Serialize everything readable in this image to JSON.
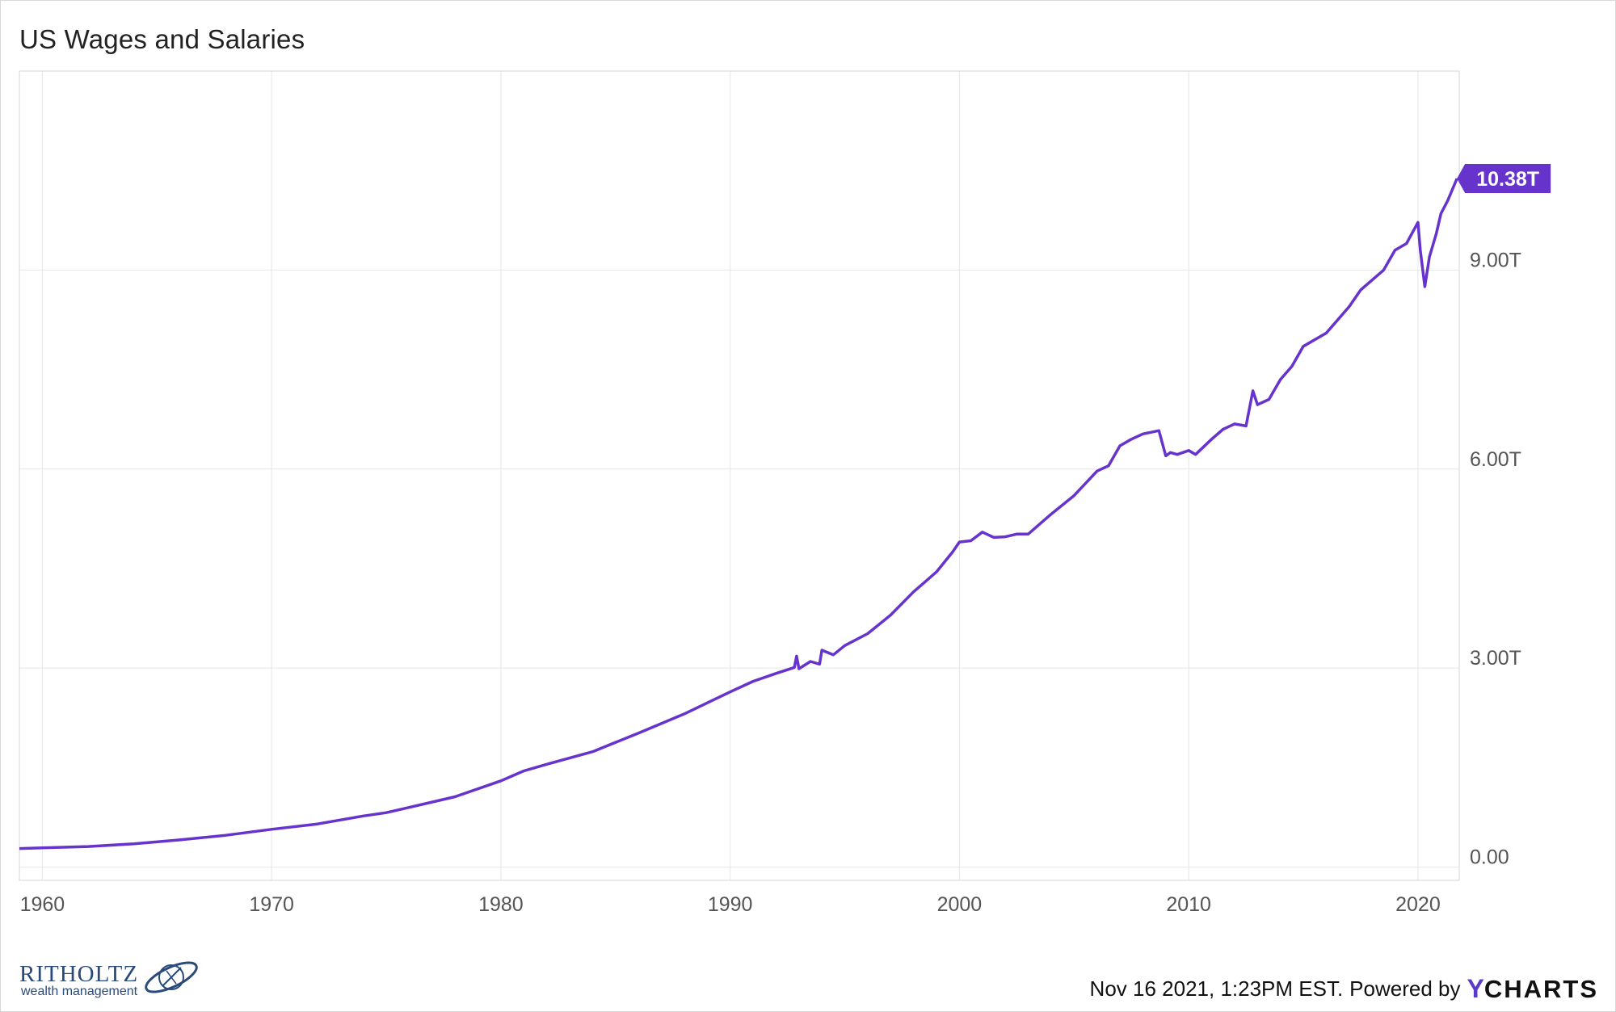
{
  "header": {
    "title": "US Wages and Salaries"
  },
  "footer": {
    "timestamp": "Nov 16 2021, 1:23PM EST.",
    "powered_by": "Powered by",
    "brand_y": "Y",
    "brand_rest": "CHARTS"
  },
  "logo": {
    "name": "RITHOLTZ",
    "sub": "wealth management"
  },
  "colors": {
    "line": "#6633cc",
    "grid": "#e6e6e6",
    "axis_text": "#555555",
    "badge": "#6633cc"
  },
  "chart_data": {
    "type": "line",
    "title": "US Wages and Salaries",
    "xlabel": "",
    "ylabel": "",
    "xlim": [
      1959.0,
      2021.8
    ],
    "ylim": [
      -0.2,
      12.0
    ],
    "x_ticks": [
      1960,
      1970,
      1980,
      1990,
      2000,
      2010,
      2020
    ],
    "x_tick_labels": [
      "1960",
      "1970",
      "1980",
      "1990",
      "2000",
      "2010",
      "2020"
    ],
    "y_ticks": [
      0,
      3,
      6,
      9
    ],
    "y_tick_labels": [
      "0.00",
      "3.00T",
      "6.00T",
      "9.00T"
    ],
    "grid": true,
    "last_value_label": "10.38T",
    "series": [
      {
        "values_unit": "trillions USD",
        "x": [
          1959.0,
          1960,
          1962,
          1964,
          1966,
          1968,
          1970,
          1972,
          1974,
          1975,
          1976,
          1978,
          1980,
          1981,
          1982,
          1984,
          1986,
          1988,
          1990,
          1991,
          1992,
          1992.8,
          1992.9,
          1993.0,
          1993.5,
          1993.9,
          1994.0,
          1994.5,
          1995,
          1996,
          1997,
          1998,
          1999,
          1999.7,
          2000,
          2000.5,
          2001,
          2001.5,
          2002,
          2002.5,
          2003,
          2004,
          2005,
          2006,
          2006.5,
          2007,
          2007.5,
          2008,
          2008.7,
          2009,
          2009.2,
          2009.5,
          2010,
          2010.3,
          2011,
          2011.5,
          2012,
          2012.5,
          2012.8,
          2013,
          2013.5,
          2014,
          2014.5,
          2015,
          2016,
          2017,
          2017.5,
          2018,
          2018.5,
          2019,
          2019.5,
          2020.0,
          2020.1,
          2020.3,
          2020.5,
          2020.8,
          2021.0,
          2021.3,
          2021.7
        ],
        "values": [
          0.28,
          0.29,
          0.31,
          0.35,
          0.41,
          0.48,
          0.57,
          0.65,
          0.77,
          0.82,
          0.9,
          1.06,
          1.3,
          1.45,
          1.55,
          1.74,
          2.02,
          2.31,
          2.64,
          2.8,
          2.92,
          3.01,
          3.18,
          2.99,
          3.1,
          3.06,
          3.27,
          3.2,
          3.34,
          3.52,
          3.8,
          4.15,
          4.45,
          4.75,
          4.9,
          4.92,
          5.05,
          4.97,
          4.98,
          5.02,
          5.02,
          5.32,
          5.6,
          5.97,
          6.05,
          6.35,
          6.45,
          6.53,
          6.58,
          6.2,
          6.25,
          6.22,
          6.28,
          6.22,
          6.45,
          6.6,
          6.68,
          6.65,
          7.18,
          6.97,
          7.05,
          7.35,
          7.55,
          7.85,
          8.05,
          8.45,
          8.7,
          8.85,
          9.0,
          9.3,
          9.4,
          9.72,
          9.3,
          8.75,
          9.2,
          9.55,
          9.85,
          10.05,
          10.38
        ]
      }
    ]
  }
}
